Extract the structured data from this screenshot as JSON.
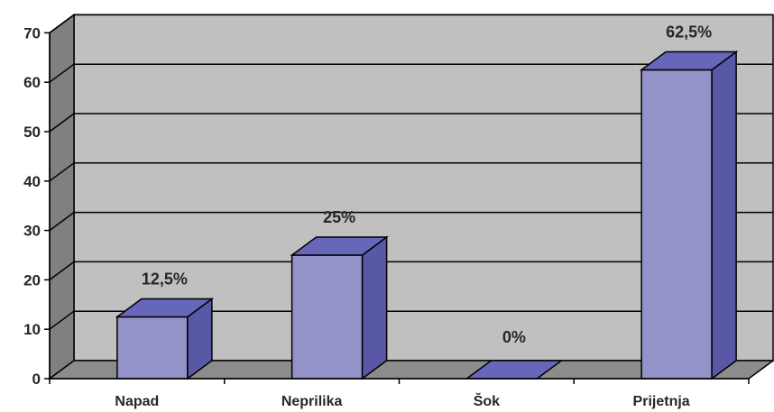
{
  "chart_data": {
    "type": "bar",
    "style": "3d-column",
    "categories": [
      "Napad",
      "Neprilika",
      "Šok",
      "Prijetnja"
    ],
    "values": [
      12.5,
      25,
      0,
      62.5
    ],
    "data_labels": [
      "12,5%",
      "25%",
      "0%",
      "62,5%"
    ],
    "ylim": [
      0,
      70
    ],
    "yticks": [
      0,
      10,
      20,
      30,
      40,
      50,
      60,
      70
    ],
    "grid": true,
    "legend": "none",
    "colors": {
      "bar_front": "#9393c9",
      "bar_top": "#6666bb",
      "bar_side": "#5858a6",
      "wall": "#c0c0c0",
      "wall_side": "#808080",
      "floor": "#8c8c8c",
      "gridline": "#000000"
    }
  }
}
